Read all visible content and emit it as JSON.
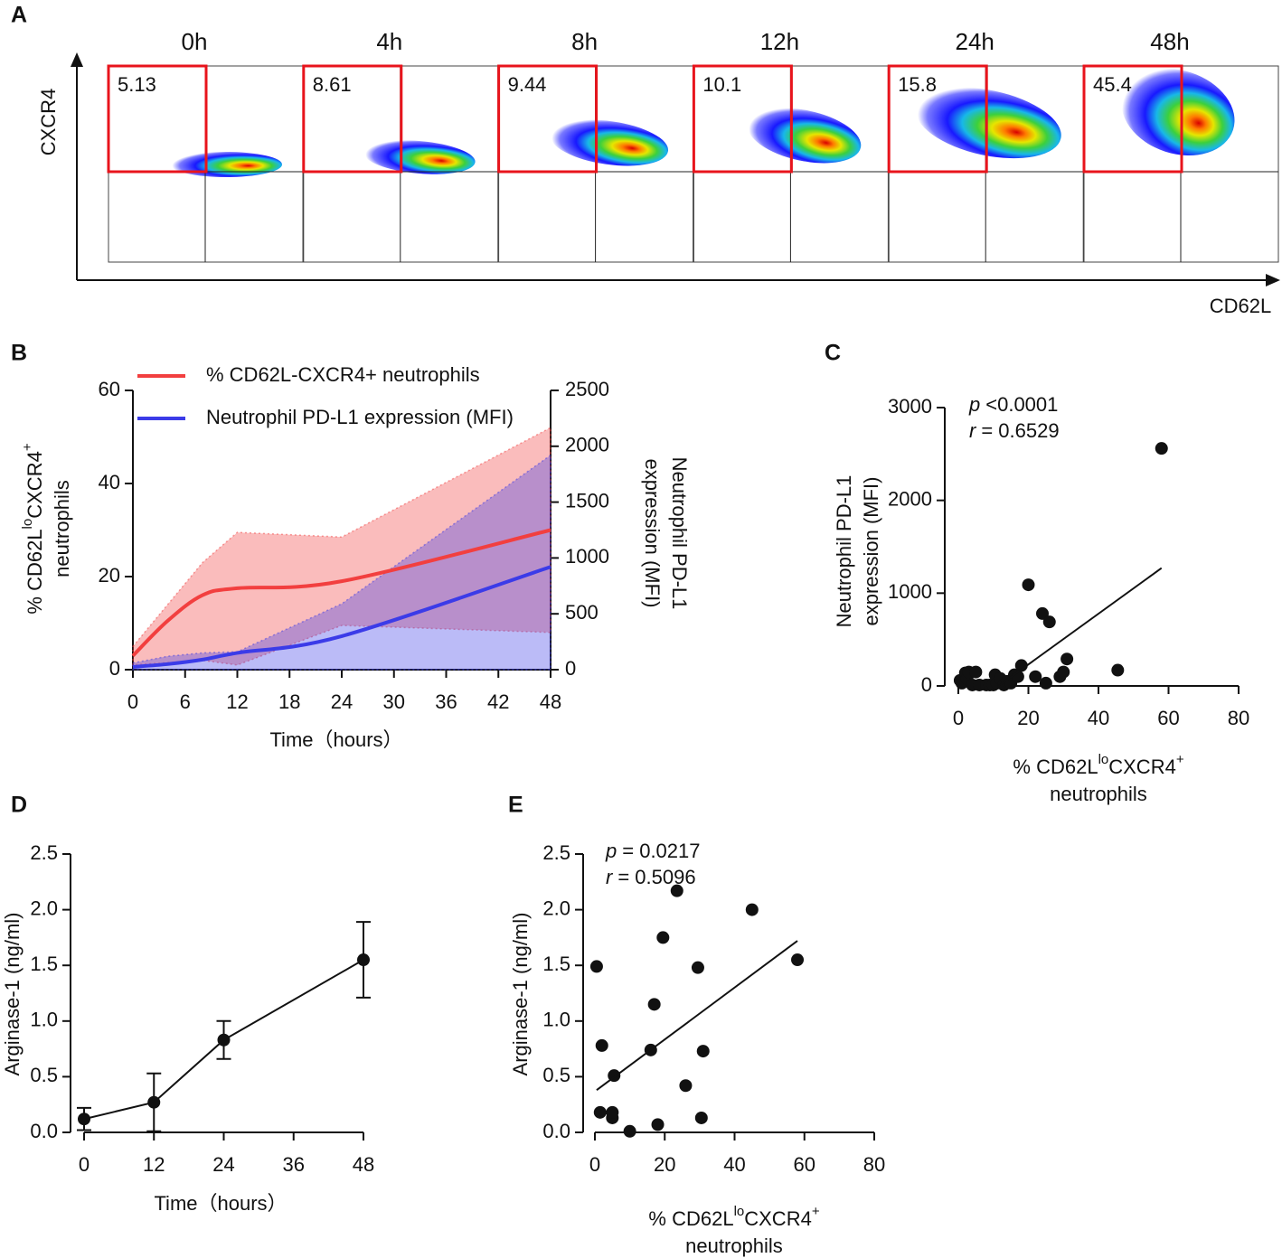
{
  "chart_data": [
    {
      "type": "flow",
      "panel": "A",
      "xlabel": "CD62L",
      "ylabel": "CXCR4",
      "categories": [
        "0h",
        "4h",
        "8h",
        "12h",
        "24h",
        "48h"
      ],
      "values": [
        5.13,
        8.61,
        9.44,
        10.1,
        15.8,
        45.4
      ],
      "gate_color": "#e8141c"
    },
    {
      "type": "line",
      "panel": "B",
      "xlabel": "Time（hours）",
      "ylabel": [
        "% CD62L",
        "lo",
        "CXCR4",
        "+",
        "neutrophils"
      ],
      "y2label": [
        "Neutrophil PD-L1",
        "expression (MFI)"
      ],
      "x": [
        0,
        4,
        8,
        12,
        24,
        48
      ],
      "xlim": [
        0,
        48
      ],
      "xticks": [
        0,
        6,
        12,
        18,
        24,
        30,
        36,
        42,
        48
      ],
      "ylim": [
        0,
        60
      ],
      "yticks": [
        0,
        20,
        40,
        60
      ],
      "y2lim": [
        0,
        2500
      ],
      "y2ticks": [
        0,
        500,
        1000,
        1500,
        2000,
        2500
      ],
      "legend": "upper left",
      "series": [
        {
          "name": "% CD62L-CXCR4+ neutrophils",
          "color": "#f23f3f",
          "values": [
            3,
            10.5,
            16,
            17.5,
            19,
            30
          ],
          "upper": [
            5,
            14,
            23,
            29.5,
            28.5,
            52
          ],
          "lower": [
            1,
            1.5,
            2,
            1,
            9.5,
            8
          ]
        },
        {
          "name": "Neutrophil PD-L1 expression (MFI)",
          "color": "#3b3be8",
          "axis": "y2",
          "values": [
            25,
            50,
            90,
            150,
            300,
            920
          ],
          "upper": [
            60,
            120,
            150,
            160,
            590,
            1920
          ],
          "lower": [
            0,
            0,
            0,
            0,
            0,
            0
          ]
        }
      ]
    },
    {
      "type": "scatter",
      "panel": "C",
      "xlabel": [
        "% CD62L",
        "lo",
        "CXCR4",
        "+",
        "neutrophils"
      ],
      "ylabel": [
        "Neutrophil PD-L1",
        "expression (MFI)"
      ],
      "xlim": [
        0,
        80
      ],
      "xticks": [
        0,
        20,
        40,
        60,
        80
      ],
      "ylim": [
        0,
        3000
      ],
      "yticks": [
        0,
        1000,
        2000,
        3000
      ],
      "x": [
        0.5,
        1,
        2,
        2.5,
        3,
        4,
        5,
        6,
        8,
        9,
        10,
        10.5,
        11,
        12,
        13,
        14,
        15,
        16,
        17,
        18,
        20,
        22,
        24,
        25,
        26,
        29,
        30,
        31,
        45.5,
        58
      ],
      "values": [
        60,
        30,
        140,
        80,
        150,
        10,
        150,
        10,
        10,
        10,
        10,
        120,
        30,
        80,
        10,
        50,
        30,
        120,
        100,
        220,
        1090,
        100,
        780,
        30,
        690,
        100,
        150,
        290,
        170,
        2560
      ],
      "color": "#111111",
      "fit": {
        "x": [
          11.5,
          58
        ],
        "values": [
          0,
          1270
        ]
      },
      "annotations": [
        {
          "stat": "p",
          "text": "<0.0001"
        },
        {
          "stat": "r",
          "text": "= 0.6529"
        }
      ]
    },
    {
      "type": "line",
      "panel": "D",
      "xlabel": "Time（hours）",
      "ylabel": "Arginase-1 (ng/ml)",
      "x": [
        0,
        12,
        24,
        48
      ],
      "values": [
        0.12,
        0.27,
        0.83,
        1.55
      ],
      "errors": [
        0.1,
        0.26,
        0.17,
        0.34
      ],
      "color": "#111111",
      "xlim": [
        0,
        48
      ],
      "xticks": [
        0,
        12,
        24,
        36,
        48
      ],
      "ylim": [
        0,
        2.5
      ],
      "yticks": [
        {
          "value": 0,
          "label": "0.0"
        },
        0.5,
        {
          "value": 1,
          "label": "1.0"
        },
        1.5,
        {
          "value": 2,
          "label": "2.0"
        },
        2.5
      ]
    },
    {
      "type": "scatter",
      "panel": "E",
      "xlabel": [
        "% CD62L",
        "lo",
        "CXCR4",
        "+",
        "neutrophils"
      ],
      "ylabel": "Arginase-1 (ng/ml)",
      "xlim": [
        0,
        80
      ],
      "xticks": [
        0,
        20,
        40,
        60,
        80
      ],
      "ylim": [
        0,
        2.5
      ],
      "yticks": [
        {
          "value": 0,
          "label": "0.0"
        },
        0.5,
        {
          "value": 1,
          "label": "1.0"
        },
        1.5,
        {
          "value": 2,
          "label": "2.0"
        },
        2.5
      ],
      "x": [
        0.5,
        1.5,
        2,
        5,
        5,
        5.5,
        10,
        16,
        17,
        18,
        19.5,
        23.5,
        26,
        29.5,
        30.5,
        31,
        45,
        58
      ],
      "values": [
        1.49,
        0.18,
        0.78,
        0.13,
        0.18,
        0.51,
        0.01,
        0.74,
        1.15,
        0.07,
        1.75,
        2.17,
        0.42,
        1.48,
        0.13,
        0.73,
        2.0,
        1.55
      ],
      "color": "#111111",
      "fit": {
        "x": [
          0.5,
          58
        ],
        "values": [
          0.38,
          1.72
        ]
      },
      "annotations": [
        {
          "stat": "p",
          "text": "= 0.0217"
        },
        {
          "stat": "r",
          "text": "= 0.5096"
        }
      ]
    }
  ]
}
